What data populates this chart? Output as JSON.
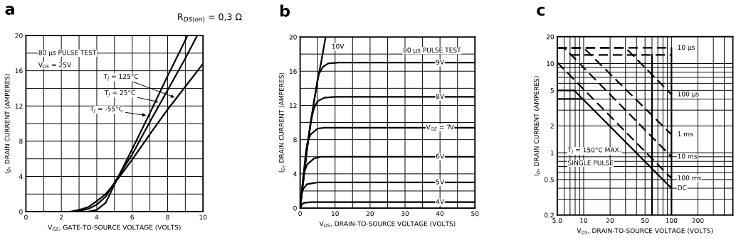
{
  "chart_data": [
    {
      "type": "line",
      "title": "a",
      "xlabel": "V$_{GS}$, GATE-TO-SOURCE VOLTAGE (VOLTS)",
      "ylabel": "I$_{D}$, DRAIN CURRENT (AMPERES)",
      "xlim": [
        0,
        10
      ],
      "ylim": [
        0,
        20
      ],
      "xticks": [
        0,
        {
          "value": 1,
          "label": null
        },
        2,
        {
          "value": 3,
          "label": null
        },
        4,
        {
          "value": 5,
          "label": null
        },
        6,
        {
          "value": 7,
          "label": null
        },
        8,
        {
          "value": 9,
          "label": null
        },
        10
      ],
      "yticks": [
        0,
        {
          "value": 2,
          "label": null
        },
        4,
        {
          "value": 6,
          "label": null
        },
        8,
        {
          "value": 10,
          "label": null
        },
        12,
        {
          "value": 14,
          "label": null
        },
        16,
        {
          "value": 18,
          "label": null
        },
        20
      ],
      "grid": true,
      "series": [
        {
          "color": "#000000",
          "line_style": "solid",
          "x": [
            2.5,
            3,
            3.5,
            4,
            4.5,
            5,
            6,
            7,
            8,
            9,
            10
          ],
          "values": [
            0,
            0.2,
            0.5,
            1.2,
            2,
            3.2,
            5.9,
            8.8,
            11.6,
            14.2,
            16.8
          ]
        },
        {
          "color": "#000000",
          "line_style": "solid",
          "x": [
            2.8,
            3.5,
            4,
            4.5,
            5,
            6,
            7,
            8,
            9,
            9.67
          ],
          "values": [
            0,
            0.3,
            0.8,
            1.7,
            3.3,
            6.5,
            10.2,
            13.8,
            17.4,
            20
          ]
        },
        {
          "color": "#000000",
          "line_style": "solid",
          "x": [
            3.5,
            4,
            4.5,
            5,
            6,
            7,
            8,
            9.13
          ],
          "values": [
            0,
            0.2,
            1,
            3.1,
            7.1,
            11.2,
            15.4,
            20
          ]
        }
      ],
      "annotations": [
        "80 µs PULSE TEST",
        "V$_{DS}$ = 25V",
        "R$_{DS(on)}$ = 0,3 Ω",
        {
          "text": "T$_{J}$ = 125°C",
          "x": 8.5,
          "y": 12.9
        },
        {
          "text": "T$_{J}$ = 25°C",
          "x": 7.6,
          "y": 12.4
        },
        {
          "text": "T$_{J}$ = -55°C",
          "x": 6.9,
          "y": 10.9
        }
      ]
    },
    {
      "type": "line",
      "title": "b",
      "xlabel": "V$_{DS}$, DRAIN-TO-SOURCE VOLTAGE (VOLTS)",
      "ylabel": "I$_{D}$, DRAIN CURRENT (AMPERES)",
      "xlim": [
        0,
        50
      ],
      "ylim": [
        0,
        20
      ],
      "xticks": [
        0,
        {
          "value": 5,
          "label": null
        },
        10,
        {
          "value": 15,
          "label": null
        },
        20,
        {
          "value": 25,
          "label": null
        },
        30,
        {
          "value": 35,
          "label": null
        },
        40,
        {
          "value": 45,
          "label": null
        },
        50
      ],
      "yticks": [
        0,
        {
          "value": 2,
          "label": null
        },
        4,
        {
          "value": 6,
          "label": null
        },
        8,
        {
          "value": 10,
          "label": null
        },
        12,
        {
          "value": 14,
          "label": null
        },
        16,
        {
          "value": 18,
          "label": null
        },
        20
      ],
      "grid": true,
      "series": [
        {
          "name": "10V",
          "color": "#000000",
          "line_style": "solid",
          "x": [
            0,
            1,
            2,
            3,
            4,
            5,
            6,
            7.3
          ],
          "values": [
            0,
            3.5,
            7,
            10,
            12.5,
            15,
            17,
            20
          ]
        },
        {
          "name": "9V",
          "color": "#000000",
          "line_style": "solid",
          "x": [
            0,
            2,
            4,
            5.3,
            6.5,
            8,
            11,
            50
          ],
          "values": [
            0,
            7,
            12.5,
            15.6,
            16.5,
            16.9,
            17,
            17
          ]
        },
        {
          "name": "8V",
          "color": "#000000",
          "line_style": "solid",
          "x": [
            0,
            2,
            3,
            4,
            5,
            7,
            10,
            50
          ],
          "values": [
            0,
            7,
            10,
            11.7,
            12.5,
            12.9,
            13,
            13
          ]
        },
        {
          "name": "V$_{GS}$ = 7V",
          "color": "#000000",
          "line_style": "solid",
          "x": [
            0,
            1.5,
            2,
            3,
            5,
            7,
            50
          ],
          "values": [
            0,
            6,
            7.5,
            8.6,
            9.3,
            9.4,
            9.4
          ]
        },
        {
          "name": "6V",
          "color": "#000000",
          "line_style": "solid",
          "x": [
            0,
            1,
            2,
            4,
            6,
            50
          ],
          "values": [
            0,
            4,
            5.1,
            5.8,
            6,
            6
          ]
        },
        {
          "name": "5V",
          "color": "#000000",
          "line_style": "solid",
          "x": [
            0,
            0.5,
            1,
            2,
            5,
            50
          ],
          "values": [
            0,
            1.8,
            2.3,
            2.8,
            3,
            3
          ]
        },
        {
          "name": "4V",
          "color": "#000000",
          "line_style": "solid",
          "x": [
            0,
            0.5,
            1,
            3,
            50
          ],
          "values": [
            0,
            0.4,
            0.6,
            0.7,
            0.7
          ]
        }
      ],
      "annotations": [
        "80 µs PULSE TEST"
      ]
    },
    {
      "type": "line",
      "title": "c",
      "xlabel": "V$_{DS}$, DRAIN-TO-SOURCE VOLTAGE (VOLTS)",
      "ylabel": "I$_{D}$, DRAIN CURRENT (AMPERES)",
      "log": "xy",
      "xlim": [
        5,
        500
      ],
      "ylim": [
        0.2,
        20
      ],
      "xticks": [
        {
          "value": 5,
          "label": "5.0"
        },
        {
          "value": 6,
          "label": null
        },
        {
          "value": 7,
          "label": null
        },
        {
          "value": 8,
          "label": null
        },
        {
          "value": 9,
          "label": null
        },
        10,
        20,
        {
          "value": 30,
          "label": null
        },
        {
          "value": 40,
          "label": null
        },
        50,
        {
          "value": 60,
          "label": null
        },
        {
          "value": 70,
          "label": null
        },
        {
          "value": 80,
          "label": null
        },
        {
          "value": 90,
          "label": null
        },
        100,
        200,
        {
          "value": 300,
          "label": null
        },
        {
          "value": 400,
          "label": null
        }
      ],
      "yticks": [
        0.2,
        {
          "value": 0.3,
          "label": null
        },
        {
          "value": 0.4,
          "label": null
        },
        0.5,
        {
          "value": 0.6,
          "label": null
        },
        {
          "value": 0.7,
          "label": null
        },
        {
          "value": 0.8,
          "label": null
        },
        {
          "value": 0.9,
          "label": null
        },
        1,
        2,
        {
          "value": 3,
          "label": null
        },
        {
          "value": 4,
          "label": null
        },
        5,
        {
          "value": 6,
          "label": null
        },
        {
          "value": 7,
          "label": null
        },
        {
          "value": 8,
          "label": null
        },
        {
          "value": 9,
          "label": null
        },
        10,
        20
      ],
      "grid": true,
      "series": [
        {
          "name": "10 µs",
          "color": "#000000",
          "line_style": "dashed",
          "x": [
            5,
            100
          ],
          "values": [
            15,
            15
          ]
        },
        {
          "name": "100 µs",
          "color": "#000000",
          "line_style": "dashed",
          "x": [
            5,
            30,
            100
          ],
          "values": [
            15,
            15,
            4.5
          ]
        },
        {
          "name": "1 ms",
          "color": "#000000",
          "line_style": "dashed",
          "x": [
            5,
            10,
            100
          ],
          "values": [
            15,
            15,
            1.6
          ]
        },
        {
          "name": "10 ms",
          "color": "#000000",
          "line_style": "dashed",
          "x": [
            5,
            6,
            100
          ],
          "values": [
            15,
            15,
            0.9
          ]
        },
        {
          "name": "100 ms",
          "color": "#000000",
          "line_style": "dashed",
          "x": [
            5,
            100
          ],
          "values": [
            10.3,
            0.515
          ]
        },
        {
          "name": "DC",
          "color": "#000000",
          "line_style": "solid",
          "x": [
            5,
            7.8,
            100
          ],
          "values": [
            5,
            5,
            0.4
          ]
        },
        {
          "color": "#000000",
          "line_style": "dashed",
          "x": [
            7,
            100
          ],
          "values": [
            12.5,
            12.5
          ]
        },
        {
          "color": "#000000",
          "line_style": "solid",
          "x": [
            5,
            9.8
          ],
          "values": [
            4,
            4
          ]
        },
        {
          "color": "#000000",
          "line_style": "solid",
          "x": [
            60,
            60
          ],
          "values": [
            0.2,
            12.5
          ]
        },
        {
          "color": "#000000",
          "line_style": "solid",
          "x": [
            100,
            100
          ],
          "values": [
            0.2,
            15
          ]
        }
      ],
      "annotations": [
        "T$_{J}$ = 150°C MAX.",
        "SINGLE PULSE"
      ]
    }
  ]
}
